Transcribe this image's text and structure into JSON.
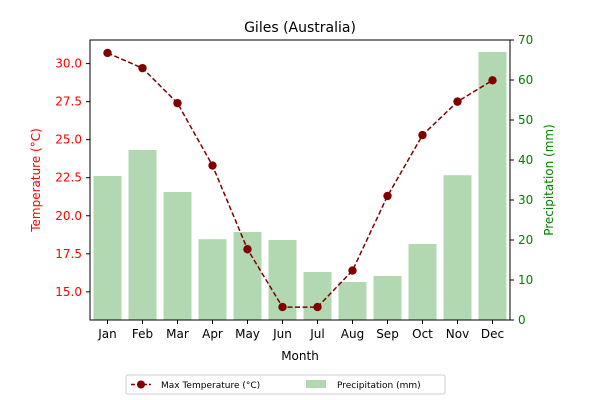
{
  "chart_data": {
    "type": "bar+line",
    "title": "Giles (Australia)",
    "xlabel": "Month",
    "categories": [
      "Jan",
      "Feb",
      "Mar",
      "Apr",
      "May",
      "Jun",
      "Jul",
      "Aug",
      "Sep",
      "Oct",
      "Nov",
      "Dec"
    ],
    "y_left": {
      "label": "Temperature (°C)",
      "lim": [
        13.15,
        31.55
      ],
      "ticks": [
        15.0,
        17.5,
        20.0,
        22.5,
        25.0,
        27.5,
        30.0
      ],
      "tick_labels": [
        "15.0",
        "17.5",
        "20.0",
        "22.5",
        "25.0",
        "27.5",
        "30.0"
      ]
    },
    "y_right": {
      "label": "Precipitation (mm)",
      "lim": [
        0,
        70
      ],
      "ticks": [
        0,
        10,
        20,
        30,
        40,
        50,
        60,
        70
      ],
      "tick_labels": [
        "0",
        "10",
        "20",
        "30",
        "40",
        "50",
        "60",
        "70"
      ]
    },
    "series": [
      {
        "name": "Max Temperature (°C)",
        "kind": "line",
        "axis": "left",
        "values": [
          30.7,
          29.7,
          27.4,
          23.3,
          17.8,
          14.0,
          14.0,
          16.4,
          21.3,
          25.3,
          27.5,
          28.9
        ]
      },
      {
        "name": "Precipitation (mm)",
        "kind": "bar",
        "axis": "right",
        "values": [
          36,
          42.5,
          32,
          20.2,
          22,
          20,
          12,
          9.5,
          11,
          19,
          36.2,
          67
        ]
      }
    ],
    "legend": {
      "placement": "bottom-center"
    },
    "grid": false
  },
  "colors": {
    "temperature_line": "#800000",
    "temperature_axis": "#ff0000",
    "precip_bar": "#b1d8b1",
    "precip_axis": "#008000",
    "text": "#000000"
  }
}
